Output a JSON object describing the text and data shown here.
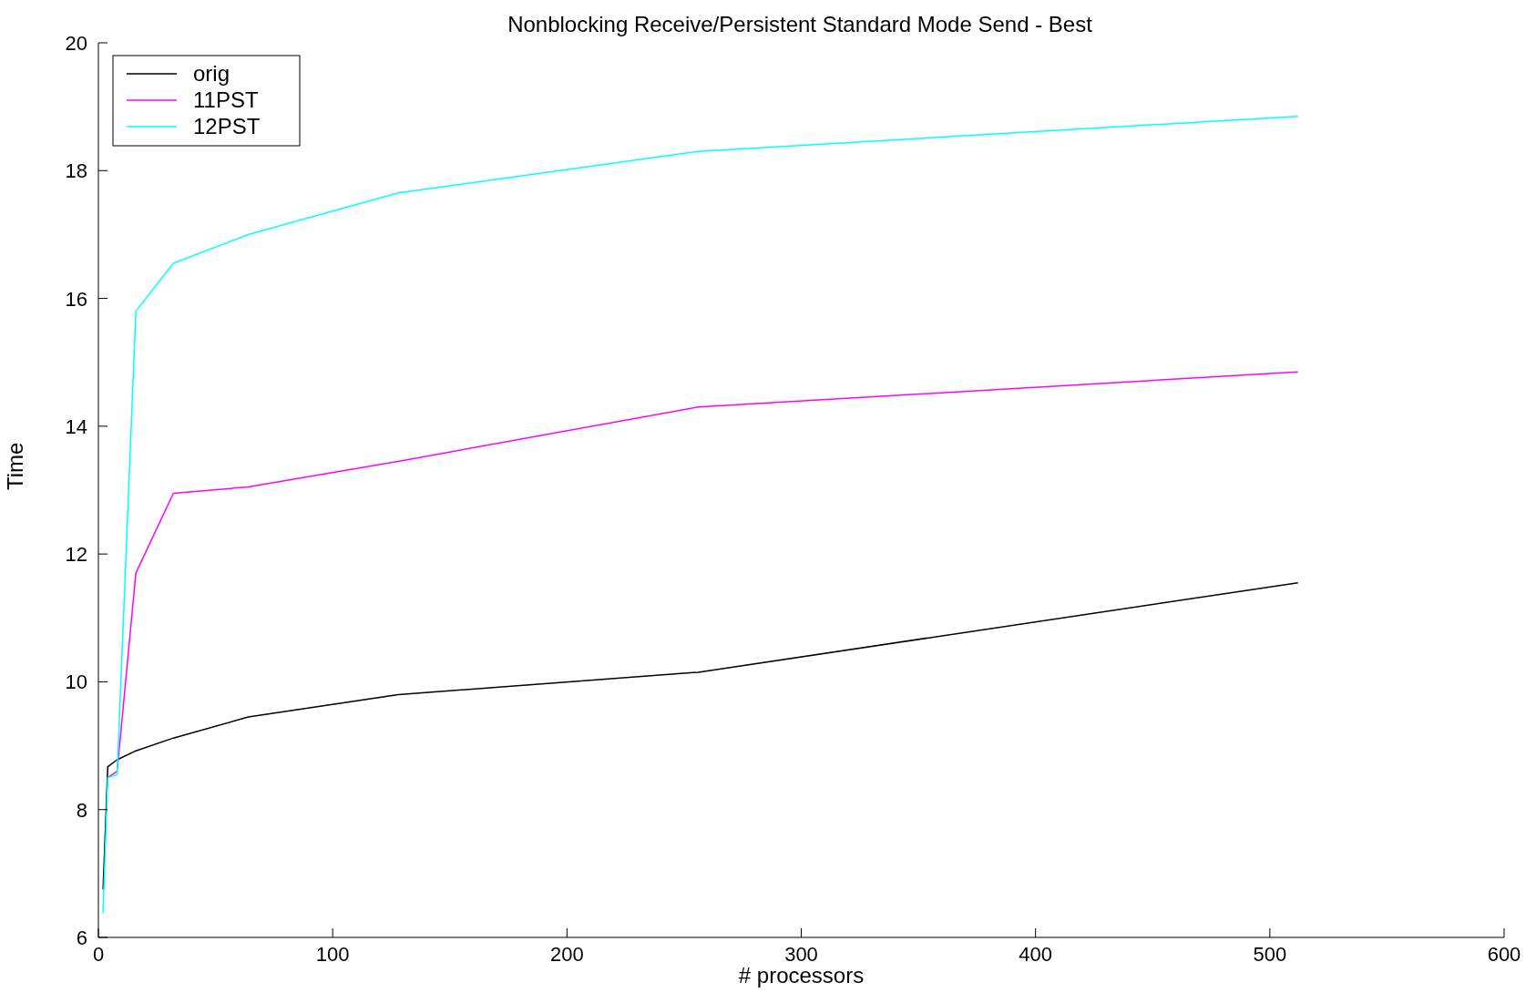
{
  "chart_data": {
    "type": "line",
    "title": "Nonblocking Receive/Persistent Standard Mode Send - Best",
    "xlabel": "# processors",
    "ylabel": "Time",
    "x": [
      2,
      4,
      8,
      16,
      32,
      64,
      128,
      256,
      512
    ],
    "series": [
      {
        "name": "orig",
        "color": "#000000",
        "values": [
          6.75,
          8.67,
          8.78,
          8.92,
          9.12,
          9.45,
          9.8,
          10.15,
          11.55
        ]
      },
      {
        "name": "11PST",
        "color": "#ff00ff",
        "values": [
          null,
          8.5,
          8.6,
          11.7,
          12.95,
          13.05,
          13.45,
          14.3,
          14.85
        ]
      },
      {
        "name": "12PST",
        "color": "#00ffff",
        "values": [
          6.38,
          8.5,
          8.55,
          15.8,
          16.55,
          17.0,
          17.65,
          18.3,
          18.85
        ]
      }
    ],
    "xlim": [
      0,
      600
    ],
    "xticks": [
      0,
      100,
      200,
      300,
      400,
      500,
      600
    ],
    "ylim": [
      6,
      20
    ],
    "yticks": [
      6,
      8,
      10,
      12,
      14,
      16,
      18,
      20
    ],
    "grid": false,
    "legend": "top left",
    "marker": "none",
    "line_style": "solid"
  }
}
